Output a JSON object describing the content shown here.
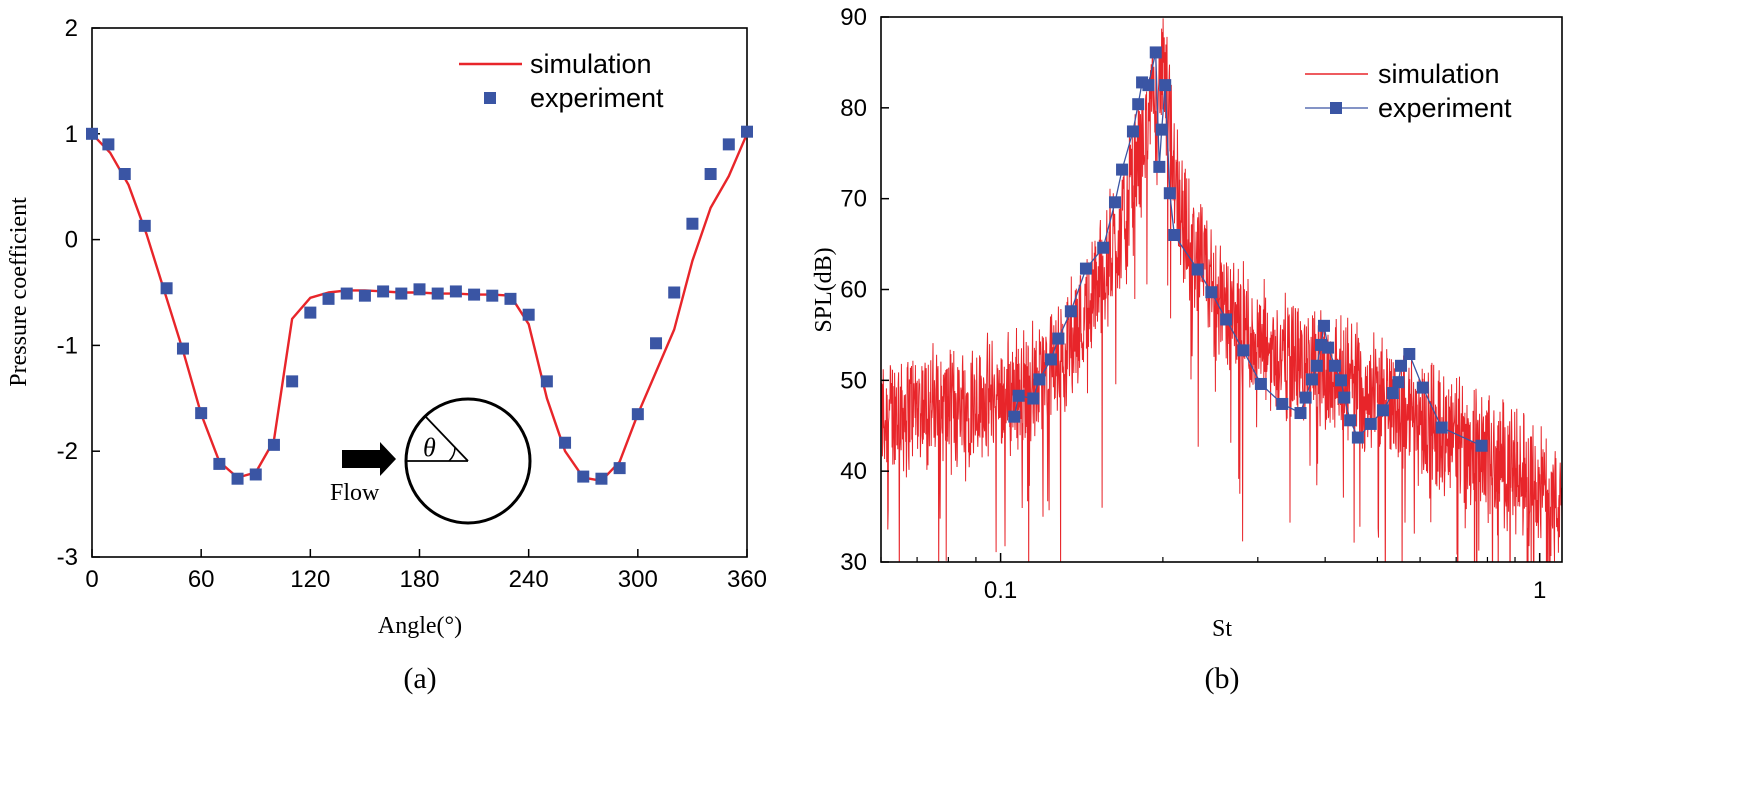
{
  "chart_data": [
    {
      "type": "line",
      "panel_label": "(a)",
      "xlabel": "Angle(°)",
      "ylabel": "Pressure coefficient",
      "xlim": [
        0,
        360
      ],
      "ylim": [
        -3,
        2
      ],
      "xticks": [
        0,
        60,
        120,
        180,
        240,
        300,
        360
      ],
      "yticks": [
        -3,
        -2,
        -1,
        0,
        1,
        2
      ],
      "xtick_labels": [
        "0",
        "60",
        "120",
        "180",
        "240",
        "300",
        "360"
      ],
      "ytick_labels": [
        "-3",
        "-2",
        "-1",
        "0",
        "1",
        "2"
      ],
      "legend": {
        "position": "top-right",
        "entries": [
          "simulation",
          "experiment"
        ]
      },
      "inset": {
        "flow_label": "Flow",
        "angle_label": "θ"
      },
      "series": [
        {
          "name": "simulation",
          "style": "line",
          "color": "#e8252a",
          "x": [
            0,
            10,
            20,
            30,
            40,
            50,
            60,
            70,
            80,
            90,
            100,
            110,
            120,
            130,
            140,
            150,
            160,
            170,
            180,
            190,
            200,
            210,
            220,
            230,
            240,
            250,
            260,
            270,
            280,
            290,
            300,
            310,
            320,
            330,
            340,
            350,
            360
          ],
          "y": [
            1.0,
            0.82,
            0.52,
            0.05,
            -0.5,
            -1.05,
            -1.65,
            -2.1,
            -2.25,
            -2.2,
            -1.9,
            -0.75,
            -0.55,
            -0.5,
            -0.48,
            -0.48,
            -0.49,
            -0.5,
            -0.5,
            -0.51,
            -0.51,
            -0.52,
            -0.52,
            -0.53,
            -0.8,
            -1.5,
            -2.0,
            -2.25,
            -2.28,
            -2.1,
            -1.65,
            -1.25,
            -0.85,
            -0.2,
            0.3,
            0.6,
            1.0
          ]
        },
        {
          "name": "experiment",
          "style": "markers",
          "color": "#3a55a4",
          "x": [
            0,
            9,
            18,
            29,
            41,
            50,
            60,
            70,
            80,
            90,
            100,
            110,
            120,
            130,
            140,
            150,
            160,
            170,
            180,
            190,
            200,
            210,
            220,
            230,
            240,
            250,
            260,
            270,
            280,
            290,
            300,
            310,
            320,
            330,
            340,
            350,
            360
          ],
          "y": [
            1.0,
            0.9,
            0.62,
            0.13,
            -0.46,
            -1.03,
            -1.64,
            -2.12,
            -2.26,
            -2.22,
            -1.94,
            -1.34,
            -0.69,
            -0.56,
            -0.51,
            -0.53,
            -0.49,
            -0.51,
            -0.47,
            -0.51,
            -0.49,
            -0.52,
            -0.53,
            -0.56,
            -0.71,
            -1.34,
            -1.92,
            -2.24,
            -2.26,
            -2.16,
            -1.65,
            -0.98,
            -0.5,
            0.15,
            0.62,
            0.9,
            1.02
          ]
        }
      ]
    },
    {
      "type": "line",
      "panel_label": "(b)",
      "xlabel": "St",
      "ylabel": "SPL(dB)",
      "xscale": "log",
      "xlim": [
        0.06,
        1.1
      ],
      "ylim": [
        30,
        90
      ],
      "xticks": [
        0.1,
        1
      ],
      "yticks": [
        30,
        40,
        50,
        60,
        70,
        80,
        90
      ],
      "xtick_labels": [
        "0.1",
        "1"
      ],
      "ytick_labels": [
        "30",
        "40",
        "50",
        "60",
        "70",
        "80",
        "90"
      ],
      "legend": {
        "position": "top-right",
        "entries": [
          "simulation",
          "experiment"
        ]
      },
      "series": [
        {
          "name": "simulation",
          "style": "noisy-line",
          "color": "#e8252a",
          "trend_x": [
            0.06,
            0.07,
            0.08,
            0.09,
            0.1,
            0.11,
            0.12,
            0.13,
            0.14,
            0.15,
            0.16,
            0.17,
            0.18,
            0.19,
            0.2,
            0.21,
            0.22,
            0.24,
            0.26,
            0.3,
            0.35,
            0.4,
            0.45,
            0.5,
            0.6,
            0.7,
            0.8,
            0.9,
            1.0,
            1.1
          ],
          "trend_y": [
            46,
            47,
            47,
            48,
            48,
            49,
            50,
            53,
            56,
            60,
            64,
            68,
            74,
            80,
            84,
            74,
            66,
            62,
            58,
            54,
            52,
            51,
            50,
            48,
            46,
            44,
            42,
            40,
            38,
            36
          ]
        },
        {
          "name": "experiment",
          "style": "line-markers",
          "color": "#3a55a4",
          "x": [
            0.106,
            0.108,
            0.115,
            0.118,
            0.124,
            0.128,
            0.135,
            0.144,
            0.155,
            0.163,
            0.168,
            0.176,
            0.18,
            0.183,
            0.188,
            0.194,
            0.197,
            0.199,
            0.202,
            0.206,
            0.21,
            0.232,
            0.246,
            0.262,
            0.282,
            0.304,
            0.333,
            0.36,
            0.368,
            0.378,
            0.386,
            0.393,
            0.398,
            0.405,
            0.417,
            0.428,
            0.434,
            0.445,
            0.46,
            0.486,
            0.512,
            0.534,
            0.547,
            0.553,
            0.573,
            0.607,
            0.658,
            0.78
          ],
          "y": [
            46,
            48.3,
            48,
            50.1,
            52.3,
            54.6,
            57.6,
            62.3,
            64.6,
            69.6,
            73.2,
            77.4,
            80.4,
            82.8,
            82.5,
            86.1,
            73.5,
            77.6,
            82.5,
            70.6,
            66,
            62.2,
            59.7,
            56.7,
            53.3,
            49.6,
            47.4,
            46.4,
            48.1,
            50.1,
            51.6,
            53.9,
            56,
            53.6,
            51.6,
            50,
            48.1,
            45.6,
            43.7,
            45.2,
            46.7,
            48.6,
            49.8,
            51.6,
            52.9,
            49.2,
            44.8,
            42.8
          ]
        }
      ]
    }
  ]
}
